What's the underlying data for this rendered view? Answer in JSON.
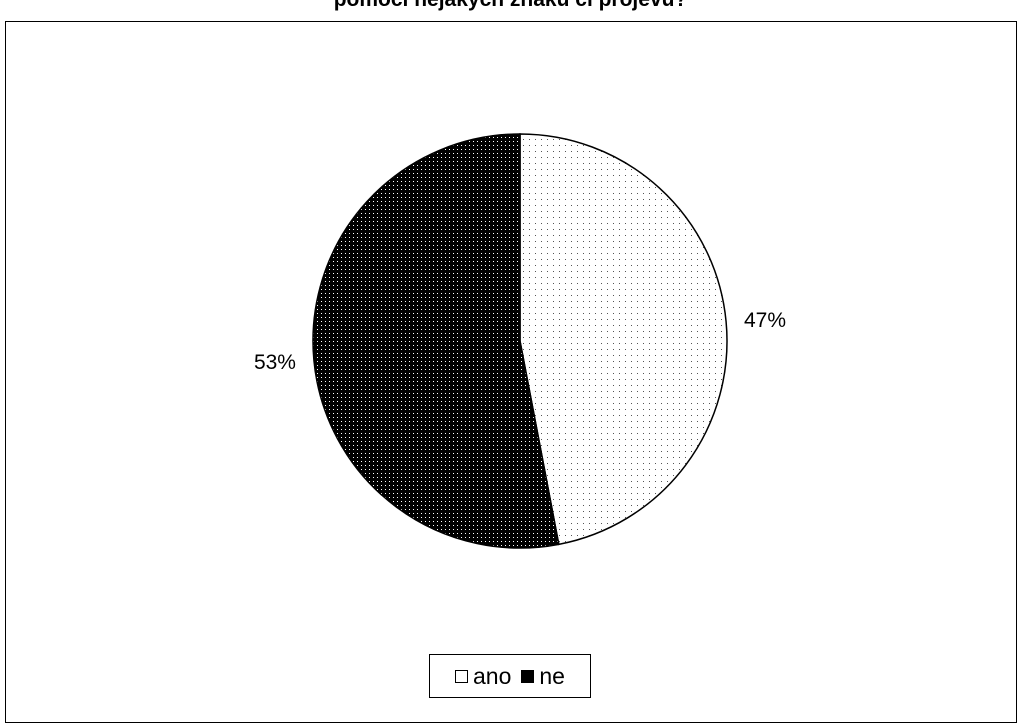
{
  "chart_data": {
    "type": "pie",
    "title": "pomocí nějakých znaků či projevů?",
    "categories": [
      "ano",
      "ne"
    ],
    "values": [
      47,
      53
    ],
    "data_labels": [
      "47%",
      "53%"
    ],
    "legend_position": "bottom",
    "colors": {
      "ano": "#ffffff",
      "ne": "#000000",
      "ano_dots": "#555555",
      "ne_dots": "#ffffff"
    }
  }
}
